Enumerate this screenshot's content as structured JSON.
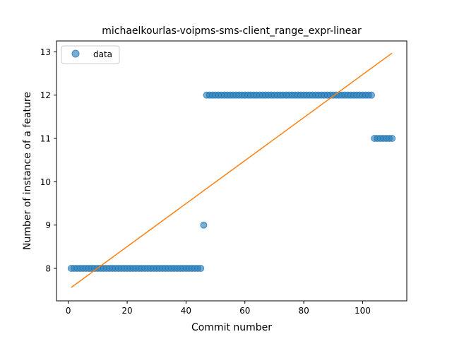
{
  "chart_data": {
    "type": "scatter",
    "title": "michaelkourlas-voipms-sms-client_range_expr-linear",
    "xlabel": "Commit number",
    "ylabel": "Number of instance of a feature",
    "xlim": [
      -4,
      115
    ],
    "ylim": [
      7.25,
      13.25
    ],
    "xticks": [
      0,
      20,
      40,
      60,
      80,
      100
    ],
    "yticks": [
      8,
      9,
      10,
      11,
      12,
      13
    ],
    "grid": false,
    "legend": {
      "position": "top-left",
      "entries": [
        "data"
      ]
    },
    "series": [
      {
        "name": "data",
        "kind": "scatter",
        "color": "#1f77b4",
        "x": [
          1,
          2,
          3,
          4,
          5,
          6,
          7,
          8,
          9,
          10,
          11,
          12,
          13,
          14,
          15,
          16,
          17,
          18,
          19,
          20,
          21,
          22,
          23,
          24,
          25,
          26,
          27,
          28,
          29,
          30,
          31,
          32,
          33,
          34,
          35,
          36,
          37,
          38,
          39,
          40,
          41,
          42,
          43,
          44,
          45,
          46,
          47,
          48,
          49,
          50,
          51,
          52,
          53,
          54,
          55,
          56,
          57,
          58,
          59,
          60,
          61,
          62,
          63,
          64,
          65,
          66,
          67,
          68,
          69,
          70,
          71,
          72,
          73,
          74,
          75,
          76,
          77,
          78,
          79,
          80,
          81,
          82,
          83,
          84,
          85,
          86,
          87,
          88,
          89,
          90,
          91,
          92,
          93,
          94,
          95,
          96,
          97,
          98,
          99,
          100,
          101,
          102,
          103,
          104,
          105,
          106,
          107,
          108,
          109,
          110
        ],
        "y": [
          8,
          8,
          8,
          8,
          8,
          8,
          8,
          8,
          8,
          8,
          8,
          8,
          8,
          8,
          8,
          8,
          8,
          8,
          8,
          8,
          8,
          8,
          8,
          8,
          8,
          8,
          8,
          8,
          8,
          8,
          8,
          8,
          8,
          8,
          8,
          8,
          8,
          8,
          8,
          8,
          8,
          8,
          8,
          8,
          8,
          9,
          12,
          12,
          12,
          12,
          12,
          12,
          12,
          12,
          12,
          12,
          12,
          12,
          12,
          12,
          12,
          12,
          12,
          12,
          12,
          12,
          12,
          12,
          12,
          12,
          12,
          12,
          12,
          12,
          12,
          12,
          12,
          12,
          12,
          12,
          12,
          12,
          12,
          12,
          12,
          12,
          12,
          12,
          12,
          12,
          12,
          12,
          12,
          12,
          12,
          12,
          12,
          12,
          12,
          12,
          12,
          12,
          12,
          11,
          11,
          11,
          11,
          11,
          11,
          11
        ]
      },
      {
        "name": "",
        "kind": "line",
        "color": "#ff7f0e",
        "x": [
          1,
          110
        ],
        "y": [
          7.56,
          12.97
        ]
      }
    ]
  }
}
